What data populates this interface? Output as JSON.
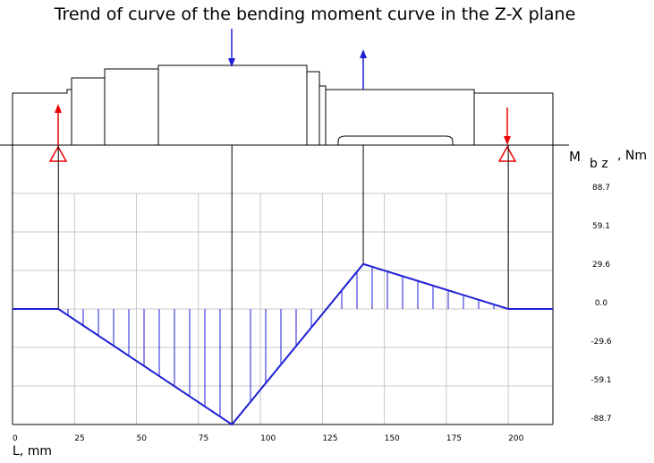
{
  "chart_data": {
    "type": "line",
    "title": "Trend of curve of the bending moment curve in the Z-X plane",
    "x_label": "L, mm",
    "y_label_symbol": "M",
    "y_label_subscript": "b z",
    "y_label_unit": ", Nm",
    "x": [
      0,
      18.5,
      88.5,
      141.5,
      200,
      218
    ],
    "series": [
      {
        "color": "#1f1fd6",
        "values": [
          0,
          0,
          -88.7,
          34.5,
          0,
          0
        ]
      }
    ],
    "xlim": [
      0,
      218
    ],
    "ylim": [
      -88.7,
      88.7
    ],
    "xticks": [
      0,
      25,
      50,
      75,
      100,
      125,
      150,
      175,
      200
    ],
    "yticks": [
      88.7,
      59.1,
      29.6,
      {
        "value": 0,
        "label": "0.0"
      },
      -29.6,
      -59.1,
      -88.7
    ],
    "grid": true,
    "hatch": true
  }
}
